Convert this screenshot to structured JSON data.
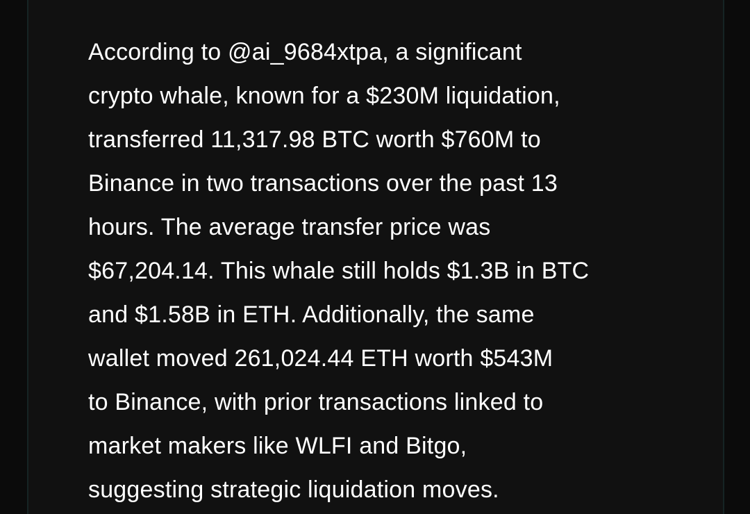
{
  "article": {
    "lines": [
      "According to @ai_9684xtpa, a significant",
      "crypto whale, known for a $230M liquidation,",
      "transferred 11,317.98 BTC worth $760M to",
      "Binance in two transactions over the past 13",
      "hours. The average transfer price was",
      "$67,204.14. This whale still holds $1.3B in BTC",
      "and $1.58B in ETH. Additionally, the same",
      "wallet moved 261,024.44 ETH worth $543M",
      "to Binance, with prior transactions linked to",
      "market makers like WLFI and Bitgo,",
      "suggesting strategic liquidation moves."
    ]
  },
  "colors": {
    "background": "#111111",
    "text": "#ffffff",
    "border": "#162424"
  }
}
